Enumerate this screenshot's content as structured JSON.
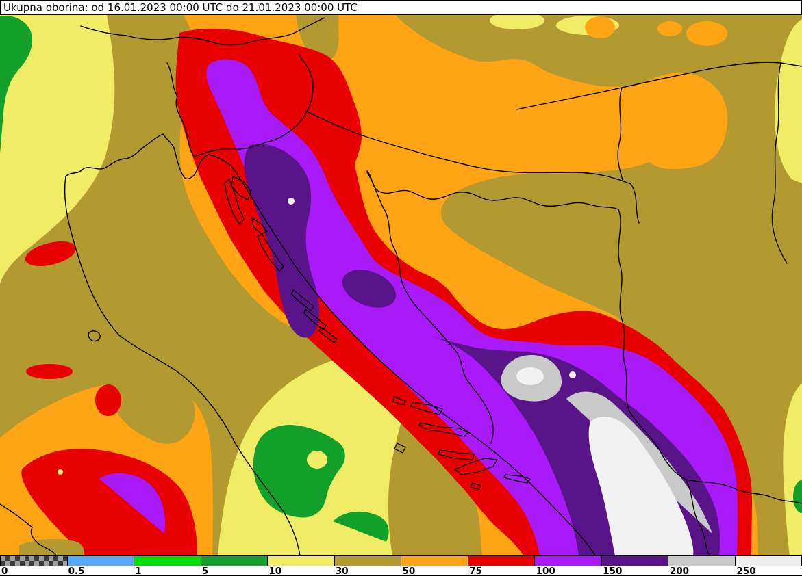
{
  "title": {
    "text": "Ukupna oborina: od 16.01.2023 00:00 UTC do 21.01.2023 00:00 UTC"
  },
  "palette": {
    "olive": "#B29A30",
    "pale_yellow": "#F1EC66",
    "orange": "#FFA414",
    "red": "#E80000",
    "purple": "#A81AF8",
    "dark_purple": "#5A1489",
    "gray": "#C9C9C9",
    "white_high": "#F1F1F1",
    "green_dark": "#12A02B",
    "checker_dark": "#3C3C3C",
    "checker_light": "#9E9E9E"
  },
  "colorbar": {
    "segments": [
      {
        "label": "0",
        "color": "checker"
      },
      {
        "label": "0.5",
        "color": "#55A9F6"
      },
      {
        "label": "1",
        "color": "#00DF00"
      },
      {
        "label": "5",
        "color": "#159F2C"
      },
      {
        "label": "10",
        "color": "#F1EC66"
      },
      {
        "label": "30",
        "color": "#B29A30"
      },
      {
        "label": "50",
        "color": "#FFA414"
      },
      {
        "label": "75",
        "color": "#E80000"
      },
      {
        "label": "100",
        "color": "#A81AF8"
      },
      {
        "label": "150",
        "color": "#5A1489"
      },
      {
        "label": "200",
        "color": "#C9C9C9"
      },
      {
        "label": "250",
        "color": "#EDEDED"
      }
    ]
  }
}
